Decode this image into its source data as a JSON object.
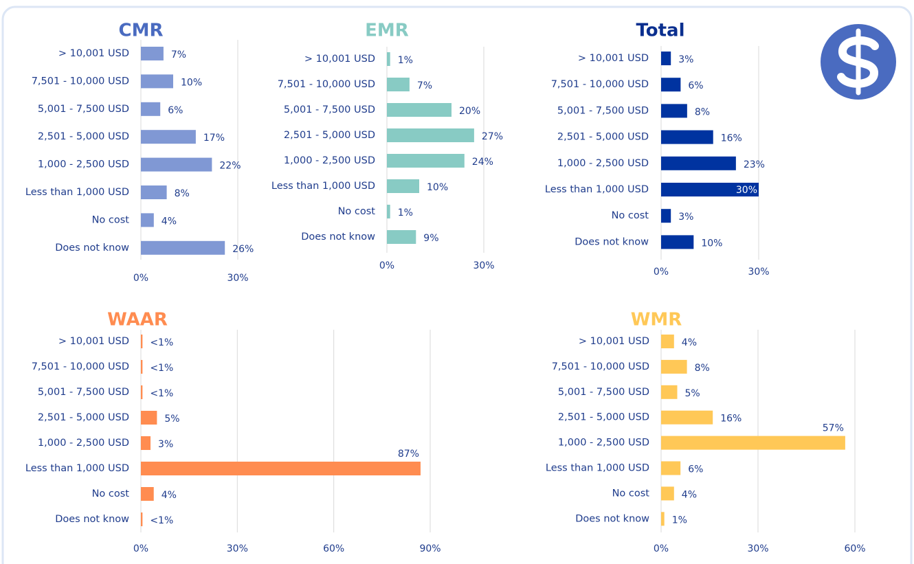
{
  "chart_data": [
    {
      "type": "bar",
      "title": "CMR",
      "title_color": "#4a6bc0",
      "color": "#8098d4",
      "categories": [
        "> 10,001 USD",
        "7,501 - 10,000 USD",
        "5,001 - 7,500 USD",
        "2,501 - 5,000 USD",
        "1,000 - 2,500 USD",
        "Less than 1,000 USD",
        "No cost",
        "Does not know"
      ],
      "values": [
        7,
        10,
        6,
        17,
        22,
        8,
        4,
        26
      ],
      "value_labels": [
        "7%",
        "10%",
        "6%",
        "17%",
        "22%",
        "8%",
        "4%",
        "26%"
      ],
      "xlim": [
        0,
        30
      ],
      "xticks": [
        {
          "value": 0,
          "label": "0%"
        },
        {
          "value": 30,
          "label": "30%"
        }
      ],
      "grid": true
    },
    {
      "type": "bar",
      "title": "EMR",
      "title_color": "#88cbc4",
      "color": "#88cbc4",
      "categories": [
        "> 10,001 USD",
        "7,501 - 10,000 USD",
        "5,001 - 7,500 USD",
        "2,501 - 5,000 USD",
        "1,000 - 2,500 USD",
        "Less than 1,000 USD",
        "No cost",
        "Does not know"
      ],
      "values": [
        1,
        7,
        20,
        27,
        24,
        10,
        1,
        9
      ],
      "value_labels": [
        "1%",
        "7%",
        "20%",
        "27%",
        "24%",
        "10%",
        "1%",
        "9%"
      ],
      "xlim": [
        0,
        30
      ],
      "xticks": [
        {
          "value": 0,
          "label": "0%"
        },
        {
          "value": 30,
          "label": "30%"
        }
      ],
      "grid": true
    },
    {
      "type": "bar",
      "title": "Total",
      "title_color": "#0a2f8f",
      "color": "#0033a0",
      "categories": [
        "> 10,001 USD",
        "7,501 - 10,000 USD",
        "5,001 - 7,500 USD",
        "2,501 - 5,000 USD",
        "1,000 - 2,500 USD",
        "Less than 1,000 USD",
        "No cost",
        "Does not know"
      ],
      "values": [
        3,
        6,
        8,
        16,
        23,
        30,
        3,
        10
      ],
      "value_labels": [
        "3%",
        "6%",
        "8%",
        "16%",
        "23%",
        "30%",
        "3%",
        "10%"
      ],
      "xlim": [
        0,
        30
      ],
      "xticks": [
        {
          "value": 0,
          "label": "0%"
        },
        {
          "value": 30,
          "label": "30%"
        }
      ],
      "grid": true
    },
    {
      "type": "bar",
      "title": "WAAR",
      "title_color": "#ff8c50",
      "color": "#ff8c50",
      "categories": [
        "> 10,001 USD",
        "7,501 - 10,000 USD",
        "5,001 - 7,500 USD",
        "2,501 - 5,000 USD",
        "1,000 - 2,500 USD",
        "Less than 1,000 USD",
        "No cost",
        "Does not know"
      ],
      "values": [
        0.5,
        0.5,
        0.5,
        5,
        3,
        87,
        4,
        0.5
      ],
      "value_labels": [
        "<1%",
        "<1%",
        "<1%",
        "5%",
        "3%",
        "87%",
        "4%",
        "<1%"
      ],
      "xlim": [
        0,
        90
      ],
      "xticks": [
        {
          "value": 0,
          "label": "0%"
        },
        {
          "value": 30,
          "label": "30%"
        },
        {
          "value": 60,
          "label": "60%"
        },
        {
          "value": 90,
          "label": "90%"
        }
      ],
      "grid": true
    },
    {
      "type": "bar",
      "title": "WMR",
      "title_color": "#ffc857",
      "color": "#ffc857",
      "categories": [
        "> 10,001 USD",
        "7,501 - 10,000 USD",
        "5,001 - 7,500 USD",
        "2,501 - 5,000 USD",
        "1,000 - 2,500 USD",
        "Less than 1,000 USD",
        "No cost",
        "Does not know"
      ],
      "values": [
        4,
        8,
        5,
        16,
        57,
        6,
        4,
        1
      ],
      "value_labels": [
        "4%",
        "8%",
        "5%",
        "16%",
        "57%",
        "6%",
        "4%",
        "1%"
      ],
      "xlim": [
        0,
        60
      ],
      "xticks": [
        {
          "value": 0,
          "label": "0%"
        },
        {
          "value": 30,
          "label": "30%"
        },
        {
          "value": 60,
          "label": "60%"
        }
      ],
      "grid": true
    }
  ]
}
